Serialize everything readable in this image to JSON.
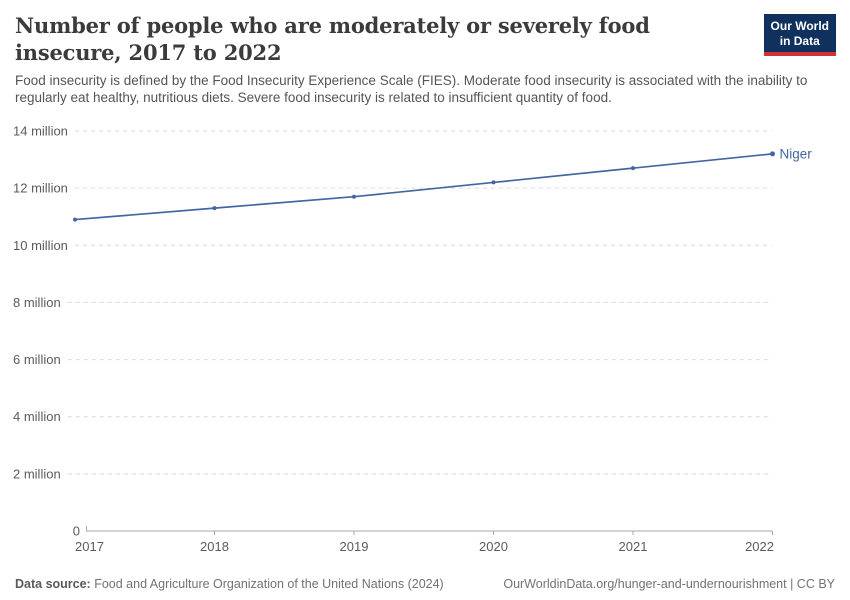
{
  "header": {
    "title": "Number of people who are moderately or severely food insecure, 2017 to 2022",
    "subtitle": "Food insecurity is defined by the Food Insecurity Experience Scale (FIES). Moderate food insecurity is associated with the inability to regularly eat healthy, nutritious diets. Severe food insecurity is related to insufficient quantity of food."
  },
  "logo": {
    "line1": "Our World",
    "line2": "in Data",
    "bg_color": "#10315e",
    "accent_color": "#cf3335"
  },
  "chart_data": {
    "type": "line",
    "title": "Number of people who are moderately or severely food insecure, 2017 to 2022",
    "x": [
      2017,
      2018,
      2019,
      2020,
      2021,
      2022
    ],
    "x_tick_labels": [
      "2017",
      "2018",
      "2019",
      "2020",
      "2021",
      "2022"
    ],
    "series": [
      {
        "name": "Niger",
        "color": "#4266a2",
        "values": [
          10.9,
          11.3,
          11.7,
          12.2,
          12.7,
          13.2
        ]
      }
    ],
    "unit": "million people",
    "ylim": [
      0,
      14
    ],
    "y_ticks": [
      {
        "v": 0,
        "label": "0"
      },
      {
        "v": 2,
        "label": "2 million"
      },
      {
        "v": 4,
        "label": "4 million"
      },
      {
        "v": 6,
        "label": "6 million"
      },
      {
        "v": 8,
        "label": "8 million"
      },
      {
        "v": 10,
        "label": "10 million"
      },
      {
        "v": 12,
        "label": "12 million"
      },
      {
        "v": 14,
        "label": "14 million"
      }
    ],
    "grid": "horizontal-dashed",
    "legend_position": "end-of-line-label",
    "colors": {
      "gridline": "#d9d9d9",
      "axis": "#a8a8a8",
      "tick_label": "#5b5b5b"
    }
  },
  "footer": {
    "datasource_label": "Data source:",
    "datasource_text": " Food and Agriculture Organization of the United Nations (2024)",
    "link_text": "OurWorldinData.org/hunger-and-undernourishment | CC BY"
  }
}
